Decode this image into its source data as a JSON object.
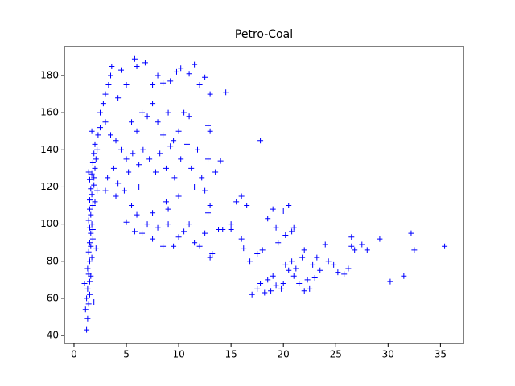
{
  "chart_data": {
    "type": "scatter",
    "title": "Petro-Coal",
    "color": "#0000ff",
    "marker": "+",
    "xlim": [
      -0.92,
      37.2
    ],
    "ylim": [
      35.7,
      195.6
    ],
    "xticks": [
      0,
      5,
      10,
      15,
      20,
      25,
      30,
      35
    ],
    "yticks": [
      40,
      60,
      80,
      100,
      120,
      140,
      160,
      180
    ],
    "series": [
      {
        "name": "Petro-Coal",
        "x": [
          1.2,
          1.3,
          1.1,
          1.4,
          1.2,
          1.5,
          1.3,
          1.0,
          1.6,
          1.4,
          1.3,
          1.5,
          1.7,
          1.4,
          1.6,
          1.5,
          1.8,
          1.6,
          1.5,
          1.7,
          1.4,
          1.6,
          1.5,
          1.8,
          1.5,
          1.7,
          1.6,
          1.9,
          1.5,
          1.7,
          1.4,
          2.0,
          1.8,
          2.1,
          1.9,
          2.2,
          2.0,
          1.7,
          2.3,
          2.5,
          1.9,
          2.2,
          2.0,
          1.8,
          2.1,
          1.5,
          1.9,
          2.5,
          2.8,
          3.0,
          3.3,
          3.5,
          3.6,
          4.2,
          4.5,
          5.0,
          5.8,
          6.0,
          6.8,
          7.5,
          8.0,
          8.5,
          9.2,
          9.8,
          10.2,
          11.0,
          11.5,
          12.0,
          12.5,
          13.0,
          14.5,
          3.0,
          3.5,
          4.0,
          4.5,
          5.0,
          5.5,
          6.0,
          6.5,
          7.0,
          7.5,
          8.0,
          8.5,
          9.0,
          9.5,
          10.0,
          10.5,
          11.0,
          12.8,
          13.0,
          3.2,
          3.8,
          4.2,
          4.8,
          5.2,
          5.6,
          6.2,
          6.6,
          7.2,
          7.8,
          8.2,
          8.8,
          9.2,
          9.6,
          10.2,
          10.8,
          11.2,
          11.8,
          12.2,
          12.8,
          13.5,
          14.0,
          3.0,
          4.0,
          5.0,
          5.5,
          6.0,
          6.5,
          7.0,
          7.5,
          8.0,
          8.5,
          9.0,
          9.5,
          10.0,
          10.5,
          11.0,
          11.5,
          12.0,
          12.5,
          13.0,
          13.2,
          13.8,
          14.2,
          15.0,
          12.8,
          13.0,
          11.5,
          12.5,
          10.0,
          8.8,
          7.5,
          6.2,
          5.8,
          9.0,
          15.5,
          16.0,
          16.5,
          17.8,
          15.0,
          16.0,
          16.2,
          16.8,
          17.5,
          18.0,
          18.5,
          19.0,
          19.3,
          20.0,
          20.5,
          21.0,
          19.5,
          20.2,
          20.8,
          17.0,
          17.5,
          17.8,
          18.2,
          18.5,
          19.0,
          19.3,
          19.8,
          20.2,
          20.5,
          20.8,
          21.0,
          21.5,
          21.8,
          22.0,
          22.3,
          22.5,
          22.8,
          23.2,
          23.5,
          24.0,
          24.3,
          24.8,
          25.2,
          25.8,
          26.2,
          26.5,
          26.5,
          26.8,
          27.5,
          28.0,
          29.2,
          30.2,
          31.5,
          32.2,
          32.5,
          35.4,
          21.2,
          22.0,
          23.0,
          20.0,
          18.8
        ],
        "values": [
          43,
          49,
          54,
          57,
          60,
          62,
          65,
          68,
          72,
          73,
          76,
          80,
          82,
          85,
          88,
          90,
          92,
          95,
          98,
          100,
          102,
          105,
          108,
          110,
          113,
          116,
          119,
          121,
          124,
          127,
          128,
          130,
          133,
          135,
          138,
          140,
          143,
          150,
          148,
          152,
          125,
          118,
          112,
          97,
          87,
          69,
          58,
          160,
          165,
          170,
          175,
          180,
          185,
          168,
          183,
          175,
          189,
          185,
          187,
          175,
          180,
          176,
          177,
          182,
          184,
          181,
          186,
          175,
          179,
          170,
          171,
          155,
          148,
          145,
          140,
          135,
          155,
          150,
          160,
          158,
          165,
          155,
          148,
          160,
          145,
          150,
          160,
          158,
          153,
          150,
          125,
          130,
          122,
          118,
          128,
          138,
          132,
          140,
          135,
          128,
          138,
          130,
          142,
          125,
          135,
          143,
          130,
          140,
          125,
          135,
          128,
          134,
          118,
          115,
          101,
          110,
          105,
          95,
          100,
          92,
          98,
          88,
          108,
          88,
          93,
          96,
          100,
          90,
          88,
          95,
          82,
          84,
          97,
          97,
          100,
          106,
          110,
          120,
          118,
          115,
          112,
          106,
          120,
          96,
          100,
          112,
          115,
          110,
          145,
          97,
          92,
          87,
          80,
          84,
          86,
          103,
          108,
          98,
          107,
          110,
          98,
          90,
          94,
          96,
          62,
          65,
          68,
          63,
          70,
          72,
          67,
          65,
          78,
          75,
          80,
          72,
          68,
          82,
          86,
          70,
          65,
          78,
          82,
          75,
          89,
          80,
          78,
          74,
          73,
          76,
          93,
          88,
          86,
          89,
          86,
          92,
          69,
          72,
          95,
          86,
          88,
          76,
          64,
          71,
          68,
          64
        ]
      }
    ]
  }
}
